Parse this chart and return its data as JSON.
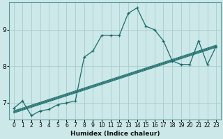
{
  "xlabel": "Humidex (Indice chaleur)",
  "ylabel": "",
  "bg_color": "#cce8e8",
  "grid_color": "#aacccc",
  "line_color": "#1a6b6b",
  "xlim": [
    -0.5,
    23.5
  ],
  "ylim": [
    6.55,
    9.75
  ],
  "yticks": [
    7,
    8,
    9
  ],
  "xticks": [
    0,
    1,
    2,
    3,
    4,
    5,
    6,
    7,
    8,
    9,
    10,
    11,
    12,
    13,
    14,
    15,
    16,
    17,
    18,
    19,
    20,
    21,
    22,
    23
  ],
  "main_x": [
    0,
    1,
    2,
    3,
    4,
    5,
    6,
    7,
    8,
    9,
    10,
    11,
    12,
    13,
    14,
    15,
    16,
    17,
    18,
    19,
    20,
    21,
    22,
    23
  ],
  "main_y": [
    6.85,
    7.05,
    6.65,
    6.78,
    6.82,
    6.95,
    7.0,
    7.05,
    8.25,
    8.42,
    8.85,
    8.85,
    8.85,
    9.45,
    9.6,
    9.1,
    9.0,
    8.7,
    8.15,
    8.05,
    8.05,
    8.7,
    8.05,
    8.55
  ],
  "trend_lines": [
    {
      "x": [
        0,
        23
      ],
      "y": [
        6.72,
        8.52
      ]
    },
    {
      "x": [
        0,
        23
      ],
      "y": [
        6.74,
        8.54
      ]
    },
    {
      "x": [
        0,
        23
      ],
      "y": [
        6.76,
        8.56
      ]
    },
    {
      "x": [
        0,
        23
      ],
      "y": [
        6.78,
        8.58
      ]
    }
  ]
}
